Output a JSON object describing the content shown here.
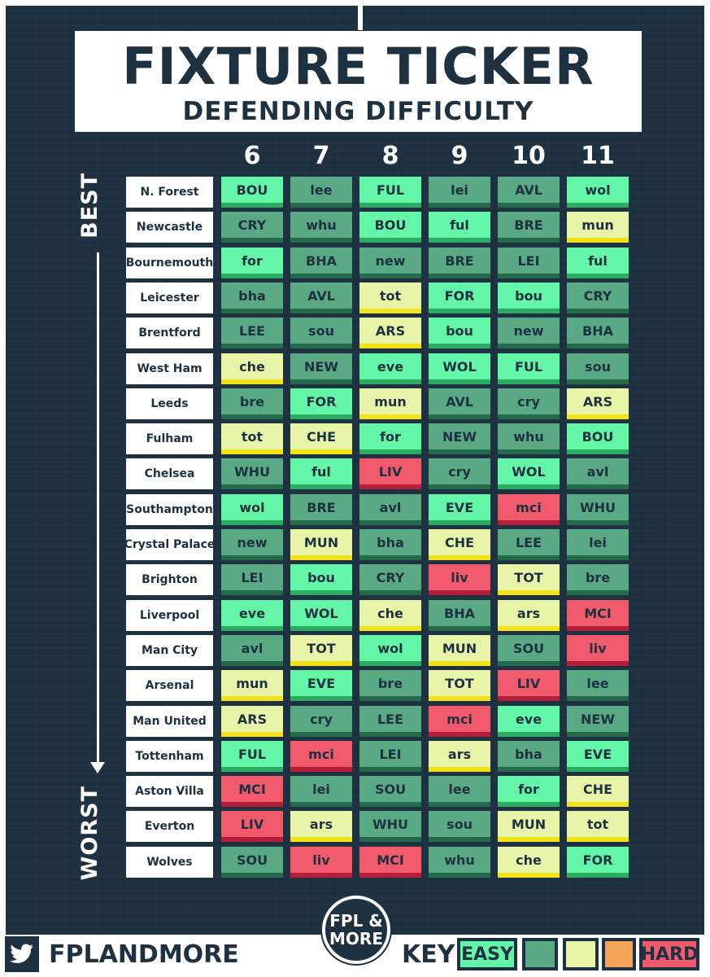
{
  "title": "FIXTURE TICKER",
  "subtitle": "DEFENDING DIFFICULTY",
  "gameweeks": [
    "6",
    "7",
    "8",
    "9",
    "10",
    "11"
  ],
  "best_label": "BEST",
  "worst_label": "WORST",
  "colors": {
    "easy": {
      "bg": "#63f5a8",
      "bar": "#2cab63"
    },
    "good": {
      "bg": "#5aa985",
      "bar": "#236b4a"
    },
    "medium": {
      "bg": "#e8f5a8",
      "bar": "#f3e21a"
    },
    "tough": {
      "bg": "#f5a55a",
      "bar": "#cc6a1f"
    },
    "hard": {
      "bg": "#f05a6c",
      "bar": "#b51e38"
    }
  },
  "rows": [
    {
      "team": "N. Forest",
      "fixtures": [
        {
          "opp": "BOU",
          "level": "easy"
        },
        {
          "opp": "lee",
          "level": "good"
        },
        {
          "opp": "FUL",
          "level": "easy"
        },
        {
          "opp": "lei",
          "level": "good"
        },
        {
          "opp": "AVL",
          "level": "good"
        },
        {
          "opp": "wol",
          "level": "easy"
        }
      ]
    },
    {
      "team": "Newcastle",
      "fixtures": [
        {
          "opp": "CRY",
          "level": "good"
        },
        {
          "opp": "whu",
          "level": "good"
        },
        {
          "opp": "BOU",
          "level": "easy"
        },
        {
          "opp": "ful",
          "level": "easy"
        },
        {
          "opp": "BRE",
          "level": "good"
        },
        {
          "opp": "mun",
          "level": "medium"
        }
      ]
    },
    {
      "team": "Bournemouth",
      "fixtures": [
        {
          "opp": "for",
          "level": "easy"
        },
        {
          "opp": "BHA",
          "level": "good"
        },
        {
          "opp": "new",
          "level": "good"
        },
        {
          "opp": "BRE",
          "level": "good"
        },
        {
          "opp": "LEI",
          "level": "good"
        },
        {
          "opp": "ful",
          "level": "easy"
        }
      ]
    },
    {
      "team": "Leicester",
      "fixtures": [
        {
          "opp": "bha",
          "level": "good"
        },
        {
          "opp": "AVL",
          "level": "good"
        },
        {
          "opp": "tot",
          "level": "medium"
        },
        {
          "opp": "FOR",
          "level": "easy"
        },
        {
          "opp": "bou",
          "level": "easy"
        },
        {
          "opp": "CRY",
          "level": "good"
        }
      ]
    },
    {
      "team": "Brentford",
      "fixtures": [
        {
          "opp": "LEE",
          "level": "good"
        },
        {
          "opp": "sou",
          "level": "good"
        },
        {
          "opp": "ARS",
          "level": "medium"
        },
        {
          "opp": "bou",
          "level": "easy"
        },
        {
          "opp": "new",
          "level": "good"
        },
        {
          "opp": "BHA",
          "level": "good"
        }
      ]
    },
    {
      "team": "West Ham",
      "fixtures": [
        {
          "opp": "che",
          "level": "medium"
        },
        {
          "opp": "NEW",
          "level": "good"
        },
        {
          "opp": "eve",
          "level": "easy"
        },
        {
          "opp": "WOL",
          "level": "easy"
        },
        {
          "opp": "FUL",
          "level": "easy"
        },
        {
          "opp": "sou",
          "level": "good"
        }
      ]
    },
    {
      "team": "Leeds",
      "fixtures": [
        {
          "opp": "bre",
          "level": "good"
        },
        {
          "opp": "FOR",
          "level": "easy"
        },
        {
          "opp": "mun",
          "level": "medium"
        },
        {
          "opp": "AVL",
          "level": "good"
        },
        {
          "opp": "cry",
          "level": "good"
        },
        {
          "opp": "ARS",
          "level": "medium"
        }
      ]
    },
    {
      "team": "Fulham",
      "fixtures": [
        {
          "opp": "tot",
          "level": "medium"
        },
        {
          "opp": "CHE",
          "level": "medium"
        },
        {
          "opp": "for",
          "level": "easy"
        },
        {
          "opp": "NEW",
          "level": "good"
        },
        {
          "opp": "whu",
          "level": "good"
        },
        {
          "opp": "BOU",
          "level": "easy"
        }
      ]
    },
    {
      "team": "Chelsea",
      "fixtures": [
        {
          "opp": "WHU",
          "level": "good"
        },
        {
          "opp": "ful",
          "level": "easy"
        },
        {
          "opp": "LIV",
          "level": "hard"
        },
        {
          "opp": "cry",
          "level": "good"
        },
        {
          "opp": "WOL",
          "level": "easy"
        },
        {
          "opp": "avl",
          "level": "good"
        }
      ]
    },
    {
      "team": "Southampton",
      "fixtures": [
        {
          "opp": "wol",
          "level": "easy"
        },
        {
          "opp": "BRE",
          "level": "good"
        },
        {
          "opp": "avl",
          "level": "good"
        },
        {
          "opp": "EVE",
          "level": "easy"
        },
        {
          "opp": "mci",
          "level": "hard"
        },
        {
          "opp": "WHU",
          "level": "good"
        }
      ]
    },
    {
      "team": "Crystal Palace",
      "fixtures": [
        {
          "opp": "new",
          "level": "good"
        },
        {
          "opp": "MUN",
          "level": "medium"
        },
        {
          "opp": "bha",
          "level": "good"
        },
        {
          "opp": "CHE",
          "level": "medium"
        },
        {
          "opp": "LEE",
          "level": "good"
        },
        {
          "opp": "lei",
          "level": "good"
        }
      ]
    },
    {
      "team": "Brighton",
      "fixtures": [
        {
          "opp": "LEI",
          "level": "good"
        },
        {
          "opp": "bou",
          "level": "easy"
        },
        {
          "opp": "CRY",
          "level": "good"
        },
        {
          "opp": "liv",
          "level": "hard"
        },
        {
          "opp": "TOT",
          "level": "medium"
        },
        {
          "opp": "bre",
          "level": "good"
        }
      ]
    },
    {
      "team": "Liverpool",
      "fixtures": [
        {
          "opp": "eve",
          "level": "easy"
        },
        {
          "opp": "WOL",
          "level": "easy"
        },
        {
          "opp": "che",
          "level": "medium"
        },
        {
          "opp": "BHA",
          "level": "good"
        },
        {
          "opp": "ars",
          "level": "medium"
        },
        {
          "opp": "MCI",
          "level": "hard"
        }
      ]
    },
    {
      "team": "Man City",
      "fixtures": [
        {
          "opp": "avl",
          "level": "good"
        },
        {
          "opp": "TOT",
          "level": "medium"
        },
        {
          "opp": "wol",
          "level": "easy"
        },
        {
          "opp": "MUN",
          "level": "medium"
        },
        {
          "opp": "SOU",
          "level": "good"
        },
        {
          "opp": "liv",
          "level": "hard"
        }
      ]
    },
    {
      "team": "Arsenal",
      "fixtures": [
        {
          "opp": "mun",
          "level": "medium"
        },
        {
          "opp": "EVE",
          "level": "easy"
        },
        {
          "opp": "bre",
          "level": "good"
        },
        {
          "opp": "TOT",
          "level": "medium"
        },
        {
          "opp": "LIV",
          "level": "hard"
        },
        {
          "opp": "lee",
          "level": "good"
        }
      ]
    },
    {
      "team": "Man United",
      "fixtures": [
        {
          "opp": "ARS",
          "level": "medium"
        },
        {
          "opp": "cry",
          "level": "good"
        },
        {
          "opp": "LEE",
          "level": "good"
        },
        {
          "opp": "mci",
          "level": "hard"
        },
        {
          "opp": "eve",
          "level": "easy"
        },
        {
          "opp": "NEW",
          "level": "good"
        }
      ]
    },
    {
      "team": "Tottenham",
      "fixtures": [
        {
          "opp": "FUL",
          "level": "easy"
        },
        {
          "opp": "mci",
          "level": "hard"
        },
        {
          "opp": "LEI",
          "level": "good"
        },
        {
          "opp": "ars",
          "level": "medium"
        },
        {
          "opp": "bha",
          "level": "good"
        },
        {
          "opp": "EVE",
          "level": "easy"
        }
      ]
    },
    {
      "team": "Aston Villa",
      "fixtures": [
        {
          "opp": "MCI",
          "level": "hard"
        },
        {
          "opp": "lei",
          "level": "good"
        },
        {
          "opp": "SOU",
          "level": "good"
        },
        {
          "opp": "lee",
          "level": "good"
        },
        {
          "opp": "for",
          "level": "easy"
        },
        {
          "opp": "CHE",
          "level": "medium"
        }
      ]
    },
    {
      "team": "Everton",
      "fixtures": [
        {
          "opp": "LIV",
          "level": "hard"
        },
        {
          "opp": "ars",
          "level": "medium"
        },
        {
          "opp": "WHU",
          "level": "good"
        },
        {
          "opp": "sou",
          "level": "good"
        },
        {
          "opp": "MUN",
          "level": "medium"
        },
        {
          "opp": "tot",
          "level": "medium"
        }
      ]
    },
    {
      "team": "Wolves",
      "fixtures": [
        {
          "opp": "SOU",
          "level": "good"
        },
        {
          "opp": "liv",
          "level": "hard"
        },
        {
          "opp": "MCI",
          "level": "hard"
        },
        {
          "opp": "whu",
          "level": "good"
        },
        {
          "opp": "che",
          "level": "medium"
        },
        {
          "opp": "FOR",
          "level": "easy"
        }
      ]
    }
  ],
  "footer": {
    "twitter_icon": "twitter-bird-icon",
    "handle": "FPLANDMORE",
    "logo_line1": "FPL &",
    "logo_line2": "MORE",
    "key_label": "KEY",
    "key": [
      {
        "level": "easy",
        "label": "EASY"
      },
      {
        "level": "good",
        "label": ""
      },
      {
        "level": "medium",
        "label": ""
      },
      {
        "level": "tough",
        "label": ""
      },
      {
        "level": "hard",
        "label": "HARD"
      }
    ]
  }
}
